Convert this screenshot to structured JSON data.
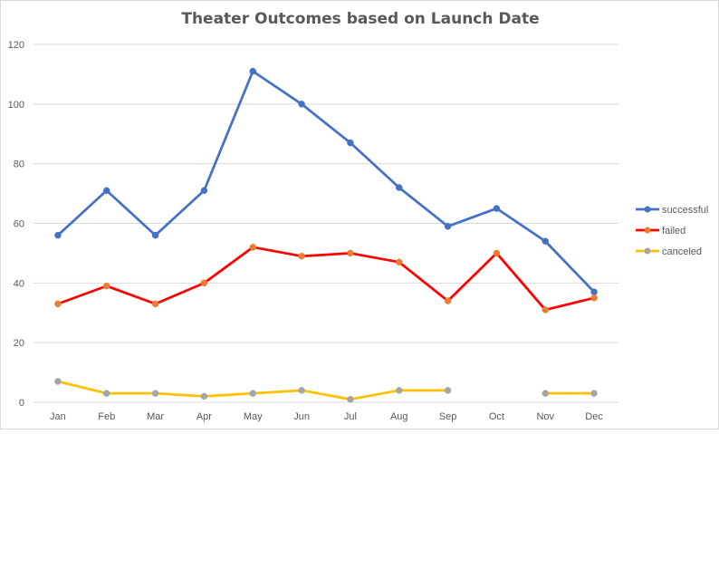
{
  "chart_data": {
    "type": "line",
    "title": "Theater Outcomes based on Launch Date",
    "xlabel": "",
    "ylabel": "",
    "categories": [
      "Jan",
      "Feb",
      "Mar",
      "Apr",
      "May",
      "Jun",
      "Jul",
      "Aug",
      "Sep",
      "Oct",
      "Nov",
      "Dec"
    ],
    "ylim": [
      0,
      120
    ],
    "yticks": [
      0,
      20,
      40,
      60,
      80,
      100,
      120
    ],
    "grid": true,
    "legend_position": "right",
    "series": [
      {
        "name": "successful",
        "color": "#4472C4",
        "marker_color": "#4472C4",
        "values": [
          56,
          71,
          56,
          71,
          111,
          100,
          87,
          72,
          59,
          65,
          54,
          37
        ]
      },
      {
        "name": "failed",
        "color": "#FF0000",
        "marker_color": "#ED7D31",
        "values": [
          33,
          39,
          33,
          40,
          52,
          49,
          50,
          47,
          34,
          50,
          31,
          35
        ]
      },
      {
        "name": "canceled",
        "color": "#FFC000",
        "marker_color": "#A5A5A5",
        "values": [
          7,
          3,
          3,
          2,
          3,
          4,
          1,
          4,
          4,
          null,
          3,
          3
        ]
      }
    ]
  }
}
